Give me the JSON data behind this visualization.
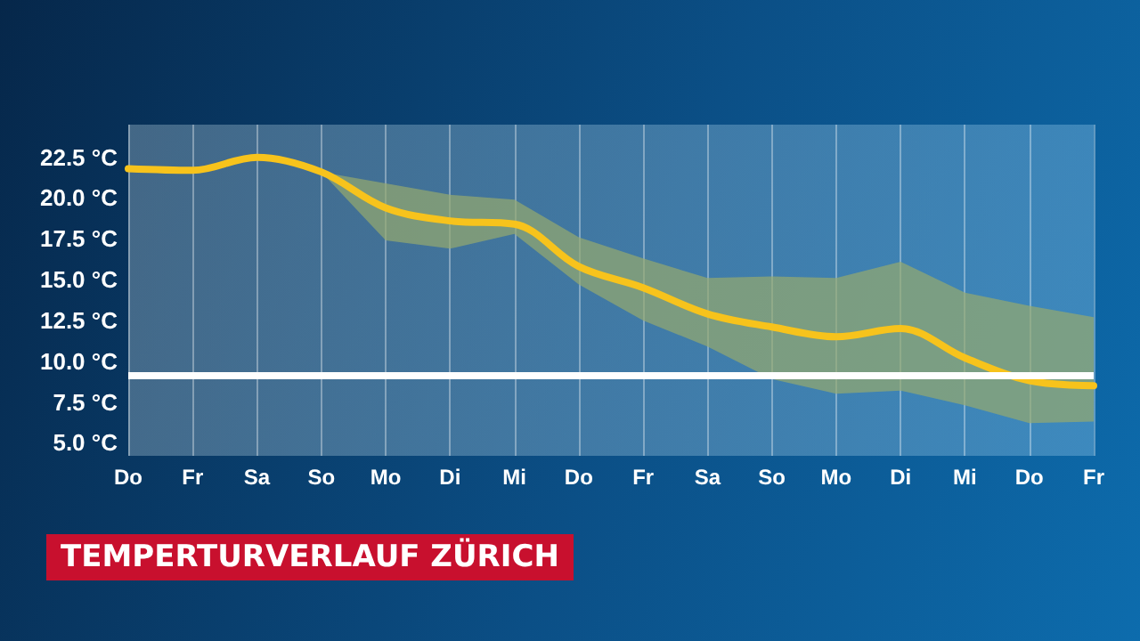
{
  "chart_data": {
    "type": "line",
    "title": "TEMPERTURVERLAUF ZÜRICH",
    "categories": [
      "Do",
      "Fr",
      "Sa",
      "So",
      "Mo",
      "Di",
      "Mi",
      "Do",
      "Fr",
      "Sa",
      "So",
      "Mo",
      "Di",
      "Mi",
      "Do",
      "Fr"
    ],
    "series": [
      {
        "color": "#f7c31c",
        "values": [
          21.8,
          21.7,
          22.5,
          21.6,
          19.4,
          18.6,
          18.4,
          15.8,
          14.5,
          12.9,
          12.1,
          11.5,
          12.0,
          10.2,
          8.8,
          8.5
        ],
        "lower": [
          21.8,
          21.7,
          22.5,
          21.6,
          17.4,
          16.9,
          17.8,
          14.7,
          12.5,
          10.9,
          8.9,
          8.0,
          8.2,
          7.3,
          6.2,
          6.3
        ],
        "upper": [
          21.8,
          21.7,
          22.5,
          21.6,
          20.9,
          20.2,
          19.9,
          17.6,
          16.3,
          15.1,
          15.2,
          15.1,
          16.1,
          14.2,
          13.4,
          12.7
        ]
      }
    ],
    "ylim": [
      4.2,
      24.5
    ],
    "yticks": [
      {
        "value": 5,
        "label": "5.0 °C"
      },
      {
        "value": 7.5,
        "label": "7.5 °C"
      },
      {
        "value": 10,
        "label": "10.0 °C"
      },
      {
        "value": 12.5,
        "label": "12.5 °C"
      },
      {
        "value": 15,
        "label": "15.0 °C"
      },
      {
        "value": 17.5,
        "label": "17.5 °C"
      },
      {
        "value": 20,
        "label": "20.0 °C"
      },
      {
        "value": 22.5,
        "label": "22.5 °C"
      }
    ],
    "ref_lines": [
      {
        "axis": "y",
        "value": 9.1,
        "color": "#ffffff"
      }
    ],
    "grid": "x",
    "marker": "none",
    "line_style": "solid"
  }
}
